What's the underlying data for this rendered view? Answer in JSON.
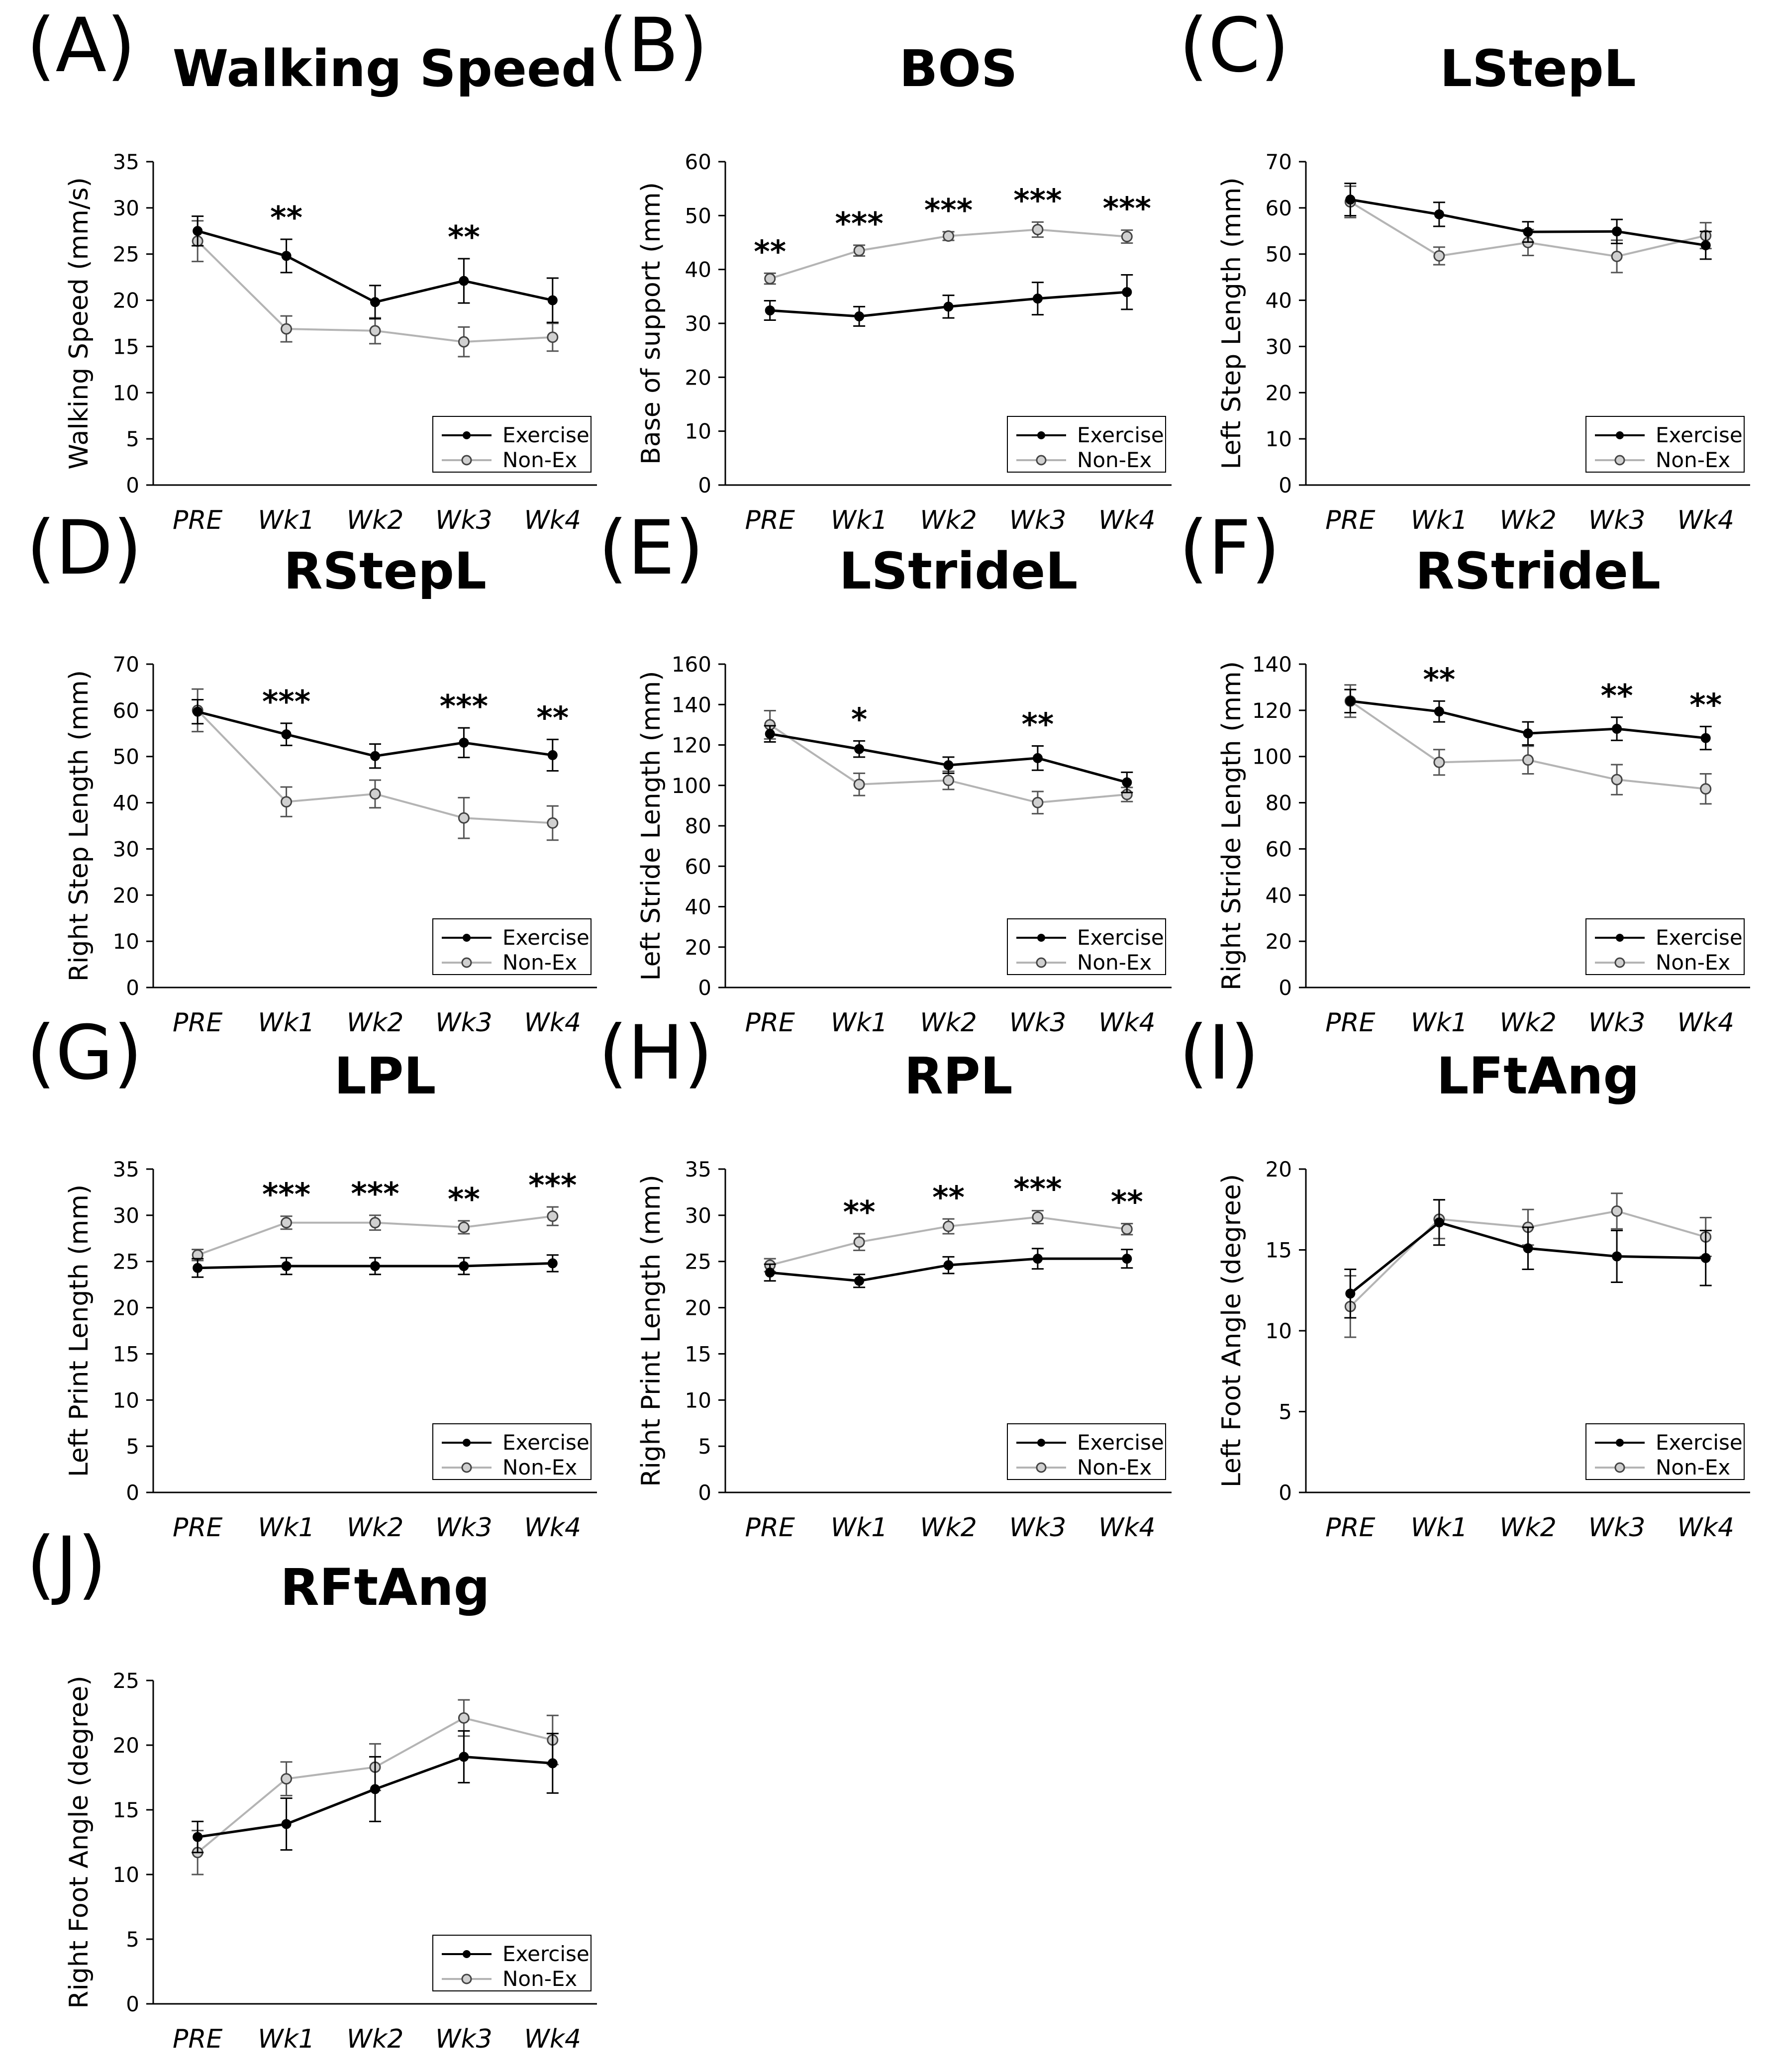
{
  "colors": {
    "exercise": "#000000",
    "nonex": "#b4b4b4",
    "axis": "#000000"
  },
  "legend": {
    "exercise_label": "Exercise",
    "nonex_label": "Non-Ex",
    "placement": "bottom-right"
  },
  "chart_data": [
    {
      "id": "A",
      "panel_label": "(A)",
      "title": "Walking Speed",
      "type": "line",
      "categories": [
        "PRE",
        "Wk1",
        "Wk2",
        "Wk3",
        "Wk4"
      ],
      "ylabel": "Walking Speed (mm/s)",
      "ylim": [
        0,
        35
      ],
      "yticks": [
        0,
        5,
        10,
        15,
        20,
        25,
        30,
        35
      ],
      "series": [
        {
          "name": "Exercise",
          "values": [
            27.5,
            24.8,
            19.8,
            22.1,
            20.0
          ],
          "errors": [
            1.6,
            1.8,
            1.8,
            2.4,
            2.4
          ]
        },
        {
          "name": "Non-Ex",
          "values": [
            26.4,
            16.9,
            16.7,
            15.5,
            16.0
          ],
          "errors": [
            2.2,
            1.4,
            1.4,
            1.6,
            1.5
          ]
        }
      ],
      "significance": [
        {
          "category": "Wk1",
          "label": "**"
        },
        {
          "category": "Wk3",
          "label": "**"
        }
      ]
    },
    {
      "id": "B",
      "panel_label": "(B)",
      "title": "BOS",
      "type": "line",
      "categories": [
        "PRE",
        "Wk1",
        "Wk2",
        "Wk3",
        "Wk4"
      ],
      "ylabel": "Base of support (mm)",
      "ylim": [
        0,
        60
      ],
      "yticks": [
        0,
        10,
        20,
        30,
        40,
        50,
        60
      ],
      "series": [
        {
          "name": "Exercise",
          "values": [
            32.4,
            31.3,
            33.1,
            34.6,
            35.8
          ],
          "errors": [
            1.8,
            1.8,
            2.1,
            3.0,
            3.2
          ]
        },
        {
          "name": "Non-Ex",
          "values": [
            38.3,
            43.5,
            46.2,
            47.4,
            46.1
          ],
          "errors": [
            1.0,
            1.0,
            0.8,
            1.4,
            1.2
          ]
        }
      ],
      "significance": [
        {
          "category": "PRE",
          "label": "**"
        },
        {
          "category": "Wk1",
          "label": "***"
        },
        {
          "category": "Wk2",
          "label": "***"
        },
        {
          "category": "Wk3",
          "label": "***"
        },
        {
          "category": "Wk4",
          "label": "***"
        }
      ]
    },
    {
      "id": "C",
      "panel_label": "(C)",
      "title": "LStepL",
      "type": "line",
      "categories": [
        "PRE",
        "Wk1",
        "Wk2",
        "Wk3",
        "Wk4"
      ],
      "ylabel": "Left Step Length (mm)",
      "ylim": [
        0,
        70
      ],
      "yticks": [
        0,
        10,
        20,
        30,
        40,
        50,
        60,
        70
      ],
      "series": [
        {
          "name": "Exercise",
          "values": [
            61.8,
            58.6,
            54.8,
            54.9,
            51.9
          ],
          "errors": [
            3.5,
            2.6,
            2.2,
            2.6,
            3.0
          ]
        },
        {
          "name": "Non-Ex",
          "values": [
            61.3,
            49.6,
            52.5,
            49.5,
            54.0
          ],
          "errors": [
            3.4,
            1.9,
            2.8,
            3.5,
            2.8
          ]
        }
      ],
      "significance": []
    },
    {
      "id": "D",
      "panel_label": "(D)",
      "title": "RStepL",
      "type": "line",
      "categories": [
        "PRE",
        "Wk1",
        "Wk2",
        "Wk3",
        "Wk4"
      ],
      "ylabel": "Right Step Length (mm)",
      "ylim": [
        0,
        70
      ],
      "yticks": [
        0,
        10,
        20,
        30,
        40,
        50,
        60,
        70
      ],
      "series": [
        {
          "name": "Exercise",
          "values": [
            59.7,
            54.8,
            50.1,
            53.0,
            50.3
          ],
          "errors": [
            2.6,
            2.4,
            2.6,
            3.2,
            3.4
          ]
        },
        {
          "name": "Non-Ex",
          "values": [
            60.0,
            40.2,
            41.9,
            36.7,
            35.6
          ],
          "errors": [
            4.6,
            3.2,
            3.0,
            4.4,
            3.7
          ]
        }
      ],
      "significance": [
        {
          "category": "Wk1",
          "label": "***"
        },
        {
          "category": "Wk3",
          "label": "***"
        },
        {
          "category": "Wk4",
          "label": "**"
        }
      ]
    },
    {
      "id": "E",
      "panel_label": "(E)",
      "title": "LStrideL",
      "type": "line",
      "categories": [
        "PRE",
        "Wk1",
        "Wk2",
        "Wk3",
        "Wk4"
      ],
      "ylabel": "Left Stride Length (mm)",
      "ylim": [
        0,
        160
      ],
      "yticks": [
        0,
        20,
        40,
        60,
        80,
        100,
        120,
        140,
        160
      ],
      "series": [
        {
          "name": "Exercise",
          "values": [
            125.5,
            118.0,
            110.0,
            113.5,
            101.5
          ],
          "errors": [
            4.0,
            4.0,
            4.0,
            6.0,
            5.0
          ]
        },
        {
          "name": "Non-Ex",
          "values": [
            130.0,
            100.5,
            102.5,
            91.5,
            95.5
          ],
          "errors": [
            7.0,
            5.5,
            4.5,
            5.5,
            3.5
          ]
        }
      ],
      "significance": [
        {
          "category": "Wk1",
          "label": "*"
        },
        {
          "category": "Wk3",
          "label": "**"
        }
      ]
    },
    {
      "id": "F",
      "panel_label": "(F)",
      "title": "RStrideL",
      "type": "line",
      "categories": [
        "PRE",
        "Wk1",
        "Wk2",
        "Wk3",
        "Wk4"
      ],
      "ylabel": "Right Stride Length (mm)",
      "ylim": [
        0,
        140
      ],
      "yticks": [
        0,
        20,
        40,
        60,
        80,
        100,
        120,
        140
      ],
      "series": [
        {
          "name": "Exercise",
          "values": [
            124.0,
            119.5,
            110.0,
            112.0,
            108.0
          ],
          "errors": [
            5.0,
            4.5,
            5.0,
            5.0,
            5.0
          ]
        },
        {
          "name": "Non-Ex",
          "values": [
            124.0,
            97.5,
            98.5,
            90.0,
            86.0
          ],
          "errors": [
            7.0,
            5.5,
            6.0,
            6.5,
            6.5
          ]
        }
      ],
      "significance": [
        {
          "category": "Wk1",
          "label": "**"
        },
        {
          "category": "Wk3",
          "label": "**"
        },
        {
          "category": "Wk4",
          "label": "**"
        }
      ]
    },
    {
      "id": "G",
      "panel_label": "(G)",
      "title": "LPL",
      "type": "line",
      "categories": [
        "PRE",
        "Wk1",
        "Wk2",
        "Wk3",
        "Wk4"
      ],
      "ylabel": "Left Print Length (mm)",
      "ylim": [
        0,
        35
      ],
      "yticks": [
        0,
        5,
        10,
        15,
        20,
        25,
        30,
        35
      ],
      "series": [
        {
          "name": "Exercise",
          "values": [
            24.3,
            24.5,
            24.5,
            24.5,
            24.8
          ],
          "errors": [
            1.0,
            0.9,
            0.9,
            0.9,
            0.9
          ]
        },
        {
          "name": "Non-Ex",
          "values": [
            25.7,
            29.2,
            29.2,
            28.7,
            29.9
          ],
          "errors": [
            0.6,
            0.7,
            0.8,
            0.7,
            1.0
          ]
        }
      ],
      "significance": [
        {
          "category": "Wk1",
          "label": "***"
        },
        {
          "category": "Wk2",
          "label": "***"
        },
        {
          "category": "Wk3",
          "label": "**"
        },
        {
          "category": "Wk4",
          "label": "***"
        }
      ]
    },
    {
      "id": "H",
      "panel_label": "(H)",
      "title": "RPL",
      "type": "line",
      "categories": [
        "PRE",
        "Wk1",
        "Wk2",
        "Wk3",
        "Wk4"
      ],
      "ylabel": "Right Print Length (mm)",
      "ylim": [
        0,
        35
      ],
      "yticks": [
        0,
        5,
        10,
        15,
        20,
        25,
        30,
        35
      ],
      "series": [
        {
          "name": "Exercise",
          "values": [
            23.8,
            22.9,
            24.6,
            25.3,
            25.3
          ],
          "errors": [
            0.9,
            0.7,
            0.9,
            1.1,
            1.0
          ]
        },
        {
          "name": "Non-Ex",
          "values": [
            24.6,
            27.1,
            28.8,
            29.8,
            28.5
          ],
          "errors": [
            0.7,
            0.9,
            0.8,
            0.7,
            0.6
          ]
        }
      ],
      "significance": [
        {
          "category": "Wk1",
          "label": "**"
        },
        {
          "category": "Wk2",
          "label": "**"
        },
        {
          "category": "Wk3",
          "label": "***"
        },
        {
          "category": "Wk4",
          "label": "**"
        }
      ]
    },
    {
      "id": "I",
      "panel_label": "(I)",
      "title": "LFtAng",
      "type": "line",
      "categories": [
        "PRE",
        "Wk1",
        "Wk2",
        "Wk3",
        "Wk4"
      ],
      "ylabel": "Left Foot Angle (degree)",
      "ylim": [
        0,
        20
      ],
      "yticks": [
        0,
        5,
        10,
        15,
        20
      ],
      "series": [
        {
          "name": "Exercise",
          "values": [
            12.3,
            16.7,
            15.1,
            14.6,
            14.5
          ],
          "errors": [
            1.5,
            1.4,
            1.3,
            1.6,
            1.7
          ]
        },
        {
          "name": "Non-Ex",
          "values": [
            11.5,
            16.9,
            16.4,
            17.4,
            15.8
          ],
          "errors": [
            1.9,
            1.2,
            1.1,
            1.1,
            1.2
          ]
        }
      ],
      "significance": []
    },
    {
      "id": "J",
      "panel_label": "(J)",
      "title": "RFtAng",
      "type": "line",
      "categories": [
        "PRE",
        "Wk1",
        "Wk2",
        "Wk3",
        "Wk4"
      ],
      "ylabel": "Right Foot Angle (degree)",
      "ylim": [
        0,
        25
      ],
      "yticks": [
        0,
        5,
        10,
        15,
        20,
        25
      ],
      "series": [
        {
          "name": "Exercise",
          "values": [
            12.9,
            13.9,
            16.6,
            19.1,
            18.6
          ],
          "errors": [
            1.2,
            2.0,
            2.5,
            2.0,
            2.3
          ]
        },
        {
          "name": "Non-Ex",
          "values": [
            11.7,
            17.4,
            18.3,
            22.1,
            20.4
          ],
          "errors": [
            1.7,
            1.3,
            1.8,
            1.4,
            1.9
          ]
        }
      ],
      "significance": []
    }
  ]
}
